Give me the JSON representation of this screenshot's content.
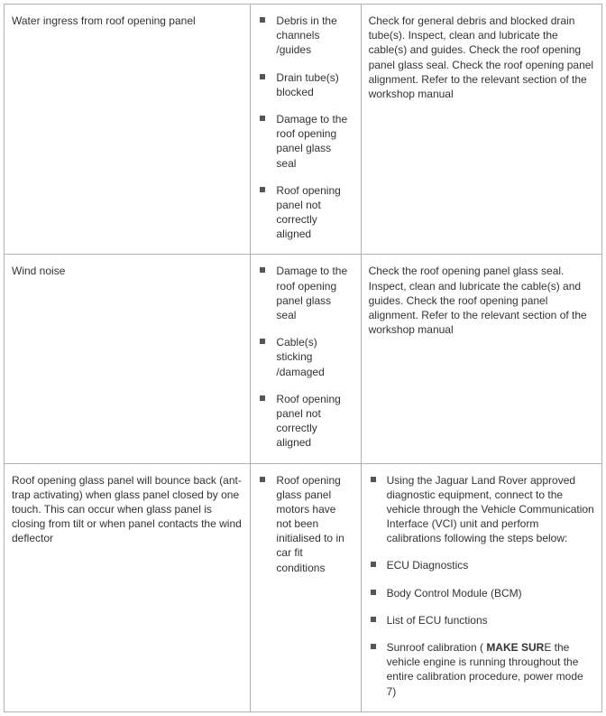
{
  "rows": [
    {
      "symptom": "Water ingress from roof opening panel",
      "causes": [
        "Debris in the channels /guides",
        "Drain tube(s) blocked",
        "Damage to the roof opening panel glass seal",
        "Roof opening panel not correctly aligned"
      ],
      "action_text": "Check for general debris and blocked drain tube(s). Inspect, clean and lubricate the cable(s) and guides. Check the roof opening panel glass seal. Check the roof opening panel alignment. Refer to the relevant section of the workshop manual"
    },
    {
      "symptom": "Wind noise",
      "causes": [
        "Damage to the roof opening panel glass seal",
        "Cable(s) sticking /damaged",
        "Roof opening panel not correctly aligned"
      ],
      "action_text": "Check the roof opening panel glass seal. Inspect, clean and lubricate the cable(s) and guides. Check the roof opening panel alignment. Refer to the relevant section of the workshop manual"
    },
    {
      "symptom": "Roof opening glass panel will bounce back (ant-trap activating) when glass panel closed by one touch. This can occur when glass panel is closing from tilt or when panel contacts the wind deflector",
      "causes": [
        "Roof opening glass panel motors have not been initialised to in car fit conditions"
      ],
      "action_list": [
        {
          "text": "Using the Jaguar Land Rover approved diagnostic equipment, connect to the vehicle through the Vehicle Communication Interface (VCI) unit and perform calibrations following the steps below:"
        },
        {
          "text": "ECU Diagnostics"
        },
        {
          "text": "Body Control Module (BCM)"
        },
        {
          "text": "List of ECU functions"
        },
        {
          "pre": "Sunroof calibration ( ",
          "bold": "MAKE SUR",
          "post": "E the vehicle engine is running throughout the entire calibration procedure, power mode 7)"
        }
      ]
    }
  ]
}
